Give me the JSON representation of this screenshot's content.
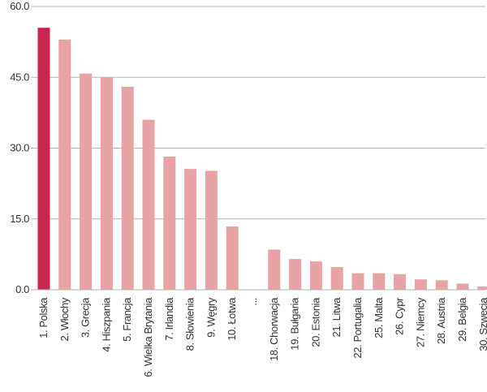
{
  "chart_data": {
    "type": "bar",
    "title": "",
    "xlabel": "",
    "ylabel": "",
    "ylim": [
      0,
      60
    ],
    "yticks": [
      "0.0",
      "15.0",
      "30.0",
      "45.0",
      "60.0"
    ],
    "grid": true,
    "highlight_color": "#c8264f",
    "bar_color": "#e8a3a6",
    "categories": [
      "1. Polska",
      "2. Włochy",
      "3. Grecja",
      "4. Hiszpania",
      "5. Francja",
      "6. Wielka Brytania",
      "7. Irlandia",
      "8. Słowienia",
      "9. Węgry",
      "10. Łotwa",
      "...",
      "18. Chorwacja",
      "19. Bułgaria",
      "20. Estonia",
      "21. Litwa",
      "22. Portugalia",
      "25. Malta",
      "26. Cypr",
      "27. Niemcy",
      "28. Austria",
      "29. Belgia",
      "30. Szwecja"
    ],
    "values": [
      55.5,
      53.0,
      45.8,
      45.0,
      43.0,
      36.0,
      28.2,
      25.6,
      25.2,
      13.4,
      null,
      8.5,
      6.5,
      6.0,
      4.8,
      3.5,
      3.5,
      3.3,
      2.2,
      2.0,
      1.3,
      0.7
    ],
    "highlight_index": 0
  }
}
